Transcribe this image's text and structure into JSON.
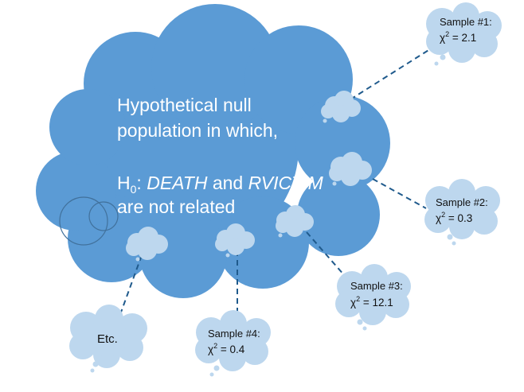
{
  "colors": {
    "big_cloud_fill": "#5b9bd5",
    "big_cloud_stroke": "#41719c",
    "small_cloud_fill": "#bdd7ee",
    "small_cloud_stroke": "#41719c",
    "connector": "#1f5a8c",
    "main_text": "#ffffff"
  },
  "population": {
    "line1": "Hypothetical null",
    "line2": "population in which,",
    "h0_prefix": "H",
    "h0_sub": "0",
    "h0_colon": ": ",
    "var1": "DEATH",
    "h0_and": " and ",
    "var2": "RVICTIM",
    "line4": "are not related"
  },
  "samples": [
    {
      "label": "Sample #1:",
      "stat_symbol": "χ",
      "stat_exp": "2",
      "stat_value": " = 2.1"
    },
    {
      "label": "Sample #2:",
      "stat_symbol": "χ",
      "stat_exp": "2",
      "stat_value": " = 0.3"
    },
    {
      "label": "Sample #3:",
      "stat_symbol": "χ",
      "stat_exp": "2",
      "stat_value": " = 12.1"
    },
    {
      "label": "Sample #4:",
      "stat_symbol": "χ",
      "stat_exp": "2",
      "stat_value": " = 0.4"
    }
  ],
  "etc": {
    "label": "Etc."
  }
}
